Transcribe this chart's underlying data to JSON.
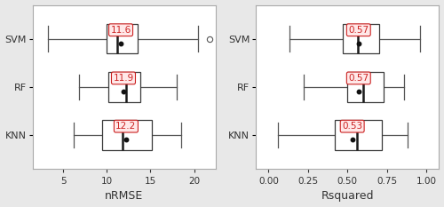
{
  "nrmse": {
    "labels": [
      "SVM",
      "RF",
      "KNN"
    ],
    "boxes": [
      {
        "q1": 10.0,
        "median": 11.2,
        "q3": 13.5,
        "whislo": 3.2,
        "whishi": 20.5,
        "mean": 11.6,
        "fliers": [
          21.8
        ]
      },
      {
        "q1": 10.2,
        "median": 12.2,
        "q3": 13.8,
        "whislo": 6.8,
        "whishi": 18.0,
        "mean": 11.9,
        "fliers": []
      },
      {
        "q1": 9.5,
        "median": 11.8,
        "q3": 15.2,
        "whislo": 6.2,
        "whishi": 18.5,
        "mean": 12.2,
        "fliers": []
      }
    ],
    "xlabel": "nRMSE",
    "xlim": [
      1.5,
      22.5
    ],
    "xticks": [
      5,
      10,
      15,
      20
    ]
  },
  "rsquared": {
    "labels": [
      "SVM",
      "RF",
      "KNN"
    ],
    "boxes": [
      {
        "q1": 0.47,
        "median": 0.565,
        "q3": 0.7,
        "whislo": 0.13,
        "whishi": 0.96,
        "mean": 0.57,
        "fliers": []
      },
      {
        "q1": 0.5,
        "median": 0.6,
        "q3": 0.73,
        "whislo": 0.22,
        "whishi": 0.86,
        "mean": 0.57,
        "fliers": []
      },
      {
        "q1": 0.42,
        "median": 0.56,
        "q3": 0.72,
        "whislo": 0.06,
        "whishi": 0.88,
        "mean": 0.53,
        "fliers": []
      }
    ],
    "xlabel": "Rsquared",
    "xlim": [
      -0.08,
      1.08
    ],
    "xticks": [
      0.0,
      0.25,
      0.5,
      0.75,
      1.0
    ]
  },
  "box_color": "#3a3a3a",
  "median_color": "#1a1a1a",
  "mean_dot_color": "#111111",
  "whisker_color": "#555555",
  "label_color": "#333333",
  "annotation_color": "#cc2222",
  "annotation_bg": "#ffe8e8",
  "figure_bg": "#e8e8e8",
  "panel_bg": "#ffffff"
}
